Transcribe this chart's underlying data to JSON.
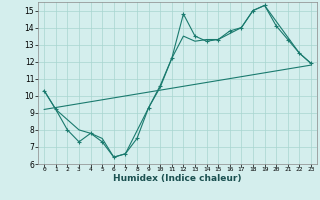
{
  "xlabel": "Humidex (Indice chaleur)",
  "background_color": "#d4eeed",
  "grid_color": "#a8d5d0",
  "line_color": "#1a7a6e",
  "xlim": [
    -0.5,
    23.5
  ],
  "ylim": [
    6,
    15.5
  ],
  "yticks": [
    6,
    7,
    8,
    9,
    10,
    11,
    12,
    13,
    14,
    15
  ],
  "xticks": [
    0,
    1,
    2,
    3,
    4,
    5,
    6,
    7,
    8,
    9,
    10,
    11,
    12,
    13,
    14,
    15,
    16,
    17,
    18,
    19,
    20,
    21,
    22,
    23
  ],
  "series": [
    {
      "x": [
        0,
        1,
        2,
        3,
        4,
        5,
        6,
        7,
        8,
        9,
        10,
        11,
        12,
        13,
        14,
        15,
        16,
        17,
        18,
        19,
        20,
        21,
        22,
        23
      ],
      "y": [
        10.3,
        9.2,
        8.0,
        7.3,
        7.8,
        7.3,
        6.4,
        6.6,
        7.5,
        9.3,
        10.6,
        12.2,
        14.8,
        13.5,
        13.2,
        13.3,
        13.8,
        14.0,
        15.0,
        15.3,
        14.1,
        13.3,
        12.5,
        11.9
      ],
      "has_markers": true
    },
    {
      "x": [
        0,
        1,
        3,
        4,
        5,
        6,
        7,
        9,
        10,
        11,
        12,
        13,
        14,
        15,
        17,
        18,
        19,
        22,
        23
      ],
      "y": [
        10.3,
        9.2,
        8.0,
        7.8,
        7.5,
        6.4,
        6.6,
        9.3,
        10.5,
        12.2,
        13.5,
        13.2,
        13.3,
        13.3,
        14.0,
        15.0,
        15.3,
        12.5,
        11.9
      ],
      "has_markers": false
    },
    {
      "x": [
        0,
        23
      ],
      "y": [
        9.2,
        11.8
      ],
      "has_markers": false
    }
  ]
}
